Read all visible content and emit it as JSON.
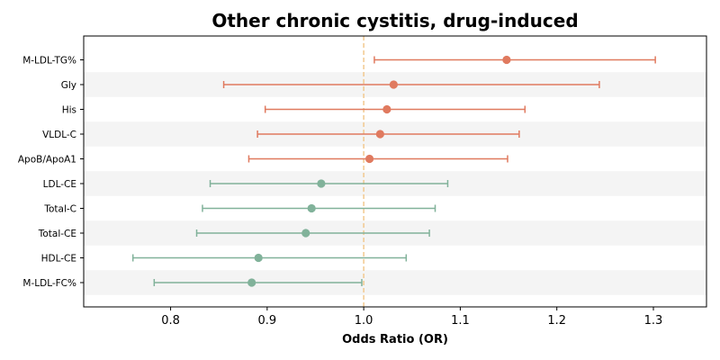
{
  "chart_data": {
    "type": "forest",
    "title": "Other chronic cystitis, drug-induced",
    "xlabel": "Odds Ratio (OR)",
    "xlim": [
      0.71,
      1.355
    ],
    "xticks": [
      0.8,
      0.9,
      1.0,
      1.1,
      1.2,
      1.3
    ],
    "xtick_labels": [
      "0.8",
      "0.9",
      "1.0",
      "1.1",
      "1.2",
      "1.3"
    ],
    "reference_line": 1.0,
    "grid": false,
    "colors": {
      "positive": "#e07a5f",
      "negative": "#81b29a",
      "reference": "#f2c98f",
      "band": "#f4f4f4"
    },
    "rows": [
      {
        "label": "M-LDL-TG%",
        "or": 1.148,
        "ci_low": 1.011,
        "ci_high": 1.302
      },
      {
        "label": "Gly",
        "or": 1.031,
        "ci_low": 0.855,
        "ci_high": 1.244
      },
      {
        "label": "His",
        "or": 1.024,
        "ci_low": 0.898,
        "ci_high": 1.167
      },
      {
        "label": "VLDL-C",
        "or": 1.017,
        "ci_low": 0.89,
        "ci_high": 1.161
      },
      {
        "label": "ApoB/ApoA1",
        "or": 1.006,
        "ci_low": 0.881,
        "ci_high": 1.149
      },
      {
        "label": "LDL-CE",
        "or": 0.956,
        "ci_low": 0.841,
        "ci_high": 1.087
      },
      {
        "label": "Total-C",
        "or": 0.946,
        "ci_low": 0.833,
        "ci_high": 1.074
      },
      {
        "label": "Total-CE",
        "or": 0.94,
        "ci_low": 0.827,
        "ci_high": 1.068
      },
      {
        "label": "HDL-CE",
        "or": 0.891,
        "ci_low": 0.761,
        "ci_high": 1.044
      },
      {
        "label": "M-LDL-FC%",
        "or": 0.884,
        "ci_low": 0.783,
        "ci_high": 0.998
      }
    ]
  }
}
